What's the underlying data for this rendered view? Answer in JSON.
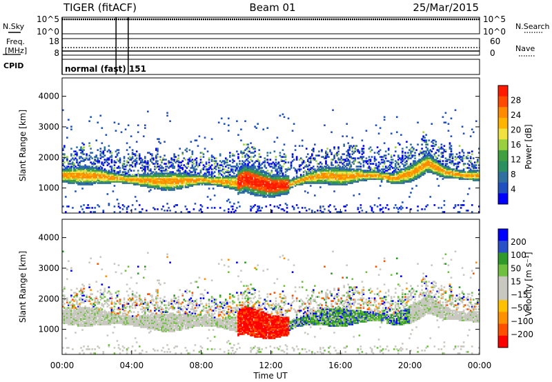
{
  "header": {
    "left_title": "TIGER (fitACF)",
    "center_title": "Beam 01",
    "date": "25/Mar/2015"
  },
  "status_panels": {
    "nsky_label": "N.Sky",
    "nsky_ticks": [
      "10^5",
      "10^0"
    ],
    "nsearch_label": "N.Search",
    "nsearch_ticks": [
      "10^5",
      "10^0"
    ],
    "freq_label_line1": "Freq.",
    "freq_label_line2": "[MHz]",
    "freq_ticks": [
      "18",
      "8"
    ],
    "nave_label": "Nave",
    "nave_ticks": [
      "60",
      "0"
    ],
    "cpid_label": "CPID",
    "cpid_text": "normal (fast) 151",
    "marker_hours": [
      0,
      3.1,
      3.8
    ]
  },
  "chart_data": [
    {
      "type": "heatmap",
      "name": "power",
      "ylabel": "Slant Range [km]",
      "xlabel": "",
      "xlim": [
        0,
        24
      ],
      "ylim": [
        180,
        4600
      ],
      "y_ticks": [
        1000,
        2000,
        3000,
        4000
      ],
      "colorbar_label": "Power [dB]",
      "colorbar_ticks": [
        "28",
        "24",
        "20",
        "16",
        "12",
        "8",
        "4"
      ],
      "colorbar_colors": [
        "#ff1a00",
        "#ff4a00",
        "#ff8c00",
        "#ffb400",
        "#f0e040",
        "#9ad040",
        "#40a040",
        "#2a9060",
        "#3070a0",
        "#2050c0",
        "#0000ff"
      ],
      "bands": [
        {
          "x": [
            0,
            2,
            4,
            6,
            8,
            10,
            10.5,
            11,
            12,
            13,
            14,
            15,
            16,
            17,
            18,
            19,
            20,
            21,
            22,
            23,
            24
          ],
          "y": [
            1400,
            1380,
            1250,
            1200,
            1250,
            1150,
            1300,
            1200,
            1050,
            1100,
            1300,
            1400,
            1350,
            1400,
            1400,
            1300,
            1450,
            1800,
            1500,
            1400,
            1400
          ]
        }
      ]
    },
    {
      "type": "heatmap",
      "name": "velocity",
      "ylabel": "Slant Range [km]",
      "xlabel": "Time UT",
      "xlim": [
        0,
        24
      ],
      "ylim": [
        180,
        4600
      ],
      "y_ticks": [
        1000,
        2000,
        3000,
        4000
      ],
      "x_ticks": [
        "00:00",
        "04:00",
        "08:00",
        "12:00",
        "16:00",
        "20:00",
        "00:00"
      ],
      "colorbar_label": "Velocity [m s⁻¹]",
      "colorbar_ticks": [
        "200",
        "100",
        "50",
        "15",
        "−15",
        "−50",
        "−100",
        "−200"
      ],
      "colorbar_colors": [
        "#0000ff",
        "#2a50c8",
        "#2f9a2a",
        "#70c040",
        "#c8c8c0",
        "#c8c8c0",
        "#ffc000",
        "#ff9000",
        "#ff5000",
        "#ff0000"
      ]
    }
  ]
}
